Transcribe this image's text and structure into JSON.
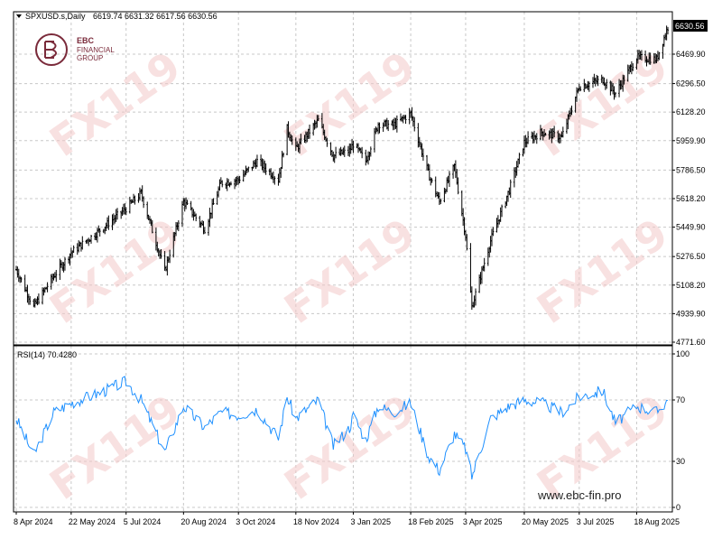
{
  "header": {
    "symbol": "SPXUSD.s,Daily",
    "ohlc": "6619.74 6631.32 6617.56 6630.56"
  },
  "logo": {
    "line1": "EBC",
    "line2": "FINANCIAL",
    "line3": "GROUP"
  },
  "watermark": "FX119",
  "website": "www.ebc-fin.pro",
  "rsi_label": "RSI(14) 70.4280",
  "colors": {
    "bars": "#000000",
    "rsi": "#1e90ff",
    "grid": "#c8c8c8",
    "logo": "#7a2a3a",
    "last_price_bg": "#000000",
    "watermark": "#f3c9c9"
  },
  "chart_data": [
    {
      "type": "ohlc",
      "symbol": "SPXUSD.s",
      "timeframe": "Daily",
      "ylim": [
        4700,
        6700
      ],
      "y_ticks": [
        "6469.90",
        "6296.50",
        "6128.20",
        "5959.90",
        "5786.50",
        "5618.20",
        "5449.90",
        "5276.50",
        "5108.20",
        "4939.90",
        "4771.60"
      ],
      "last_price": "6630.56",
      "x_ticks": [
        "8 Apr 2024",
        "22 May 2024",
        "5 Jul 2024",
        "20 Aug 2024",
        "3 Oct 2024",
        "18 Nov 2024",
        "3 Jan 2025",
        "18 Feb 2025",
        "3 Apr 2025",
        "20 May 2025",
        "3 Jul 2025",
        "18 Aug 2025"
      ],
      "x": [
        "2024-04-08",
        "2024-04-22",
        "2024-05-08",
        "2024-05-22",
        "2024-06-12",
        "2024-07-05",
        "2024-07-17",
        "2024-08-05",
        "2024-08-20",
        "2024-09-06",
        "2024-09-19",
        "2024-10-03",
        "2024-10-18",
        "2024-11-04",
        "2024-11-11",
        "2024-11-18",
        "2024-12-06",
        "2024-12-18",
        "2024-12-31",
        "2025-01-03",
        "2025-01-13",
        "2025-01-23",
        "2025-02-04",
        "2025-02-18",
        "2025-03-04",
        "2025-03-13",
        "2025-03-25",
        "2025-04-03",
        "2025-04-08",
        "2025-04-23",
        "2025-05-08",
        "2025-05-20",
        "2025-06-03",
        "2025-06-19",
        "2025-07-03",
        "2025-07-22",
        "2025-08-01",
        "2025-08-18",
        "2025-09-03",
        "2025-09-12"
      ],
      "close": [
        5200,
        4980,
        5160,
        5300,
        5420,
        5560,
        5650,
        5190,
        5600,
        5440,
        5710,
        5730,
        5840,
        5730,
        6030,
        5910,
        6080,
        5870,
        5900,
        5940,
        5840,
        6060,
        6050,
        6120,
        5770,
        5600,
        5810,
        5400,
        4980,
        5370,
        5670,
        5950,
        6010,
        5980,
        6280,
        6320,
        6240,
        6450,
        6440,
        6630
      ]
    },
    {
      "type": "line",
      "indicator": "RSI(14)",
      "last_value": "70.4280",
      "ylim": [
        0,
        100
      ],
      "y_ticks": [
        100,
        70,
        30,
        0
      ],
      "x": [
        "2024-04-08",
        "2024-04-22",
        "2024-05-08",
        "2024-05-22",
        "2024-06-12",
        "2024-07-05",
        "2024-07-17",
        "2024-08-05",
        "2024-08-20",
        "2024-09-06",
        "2024-09-19",
        "2024-10-03",
        "2024-10-18",
        "2024-11-04",
        "2024-11-11",
        "2024-11-18",
        "2024-12-06",
        "2024-12-18",
        "2024-12-31",
        "2025-01-03",
        "2025-01-13",
        "2025-01-23",
        "2025-02-04",
        "2025-02-18",
        "2025-03-04",
        "2025-03-13",
        "2025-03-25",
        "2025-04-03",
        "2025-04-08",
        "2025-04-23",
        "2025-05-08",
        "2025-05-20",
        "2025-06-03",
        "2025-06-19",
        "2025-07-03",
        "2025-07-22",
        "2025-08-01",
        "2025-08-18",
        "2025-09-03",
        "2025-09-12"
      ],
      "values": [
        58,
        34,
        62,
        68,
        74,
        82,
        70,
        36,
        66,
        52,
        62,
        60,
        64,
        45,
        72,
        58,
        70,
        40,
        52,
        60,
        44,
        66,
        62,
        68,
        34,
        24,
        48,
        38,
        20,
        58,
        66,
        70,
        68,
        62,
        72,
        76,
        55,
        66,
        62,
        70
      ]
    }
  ]
}
